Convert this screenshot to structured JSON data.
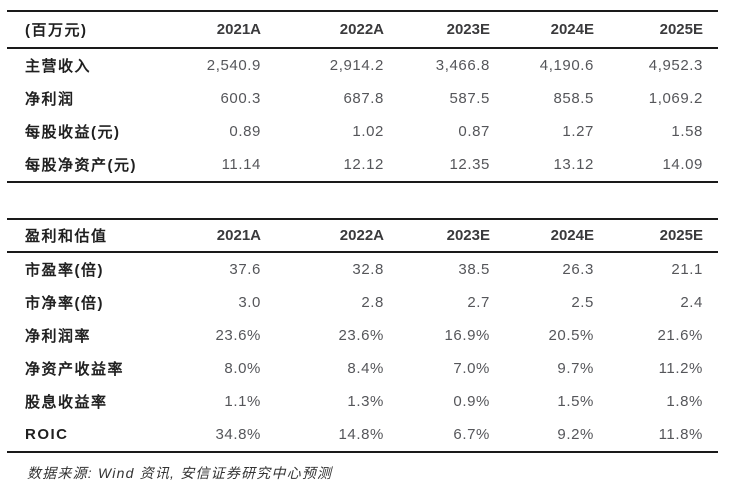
{
  "colors": {
    "background": "#ffffff",
    "rule_line": "#1a1a1a",
    "header_text": "#3a3a3c",
    "label_text": "#1f1f1f",
    "number_text": "#55565a",
    "footer_text": "#333333"
  },
  "summary_table": {
    "unit_label": "(百万元)",
    "columns": [
      "2021A",
      "2022A",
      "2023E",
      "2024E",
      "2025E"
    ],
    "rows": [
      {
        "label": "主营收入",
        "values": [
          "2,540.9",
          "2,914.2",
          "3,466.8",
          "4,190.6",
          "4,952.3"
        ]
      },
      {
        "label": "净利润",
        "values": [
          "600.3",
          "687.8",
          "587.5",
          "858.5",
          "1,069.2"
        ]
      },
      {
        "label": "每股收益(元)",
        "values": [
          "0.89",
          "1.02",
          "0.87",
          "1.27",
          "1.58"
        ]
      },
      {
        "label": "每股净资产(元)",
        "values": [
          "11.14",
          "12.12",
          "12.35",
          "13.12",
          "14.09"
        ]
      }
    ]
  },
  "valuation_table": {
    "title": "盈利和估值",
    "columns": [
      "2021A",
      "2022A",
      "2023E",
      "2024E",
      "2025E"
    ],
    "rows": [
      {
        "label": "市盈率(倍)",
        "values": [
          "37.6",
          "32.8",
          "38.5",
          "26.3",
          "21.1"
        ]
      },
      {
        "label": "市净率(倍)",
        "values": [
          "3.0",
          "2.8",
          "2.7",
          "2.5",
          "2.4"
        ]
      },
      {
        "label": "净利润率",
        "values": [
          "23.6%",
          "23.6%",
          "16.9%",
          "20.5%",
          "21.6%"
        ]
      },
      {
        "label": "净资产收益率",
        "values": [
          "8.0%",
          "8.4%",
          "7.0%",
          "9.7%",
          "11.2%"
        ]
      },
      {
        "label": "股息收益率",
        "values": [
          "1.1%",
          "1.3%",
          "0.9%",
          "1.5%",
          "1.8%"
        ]
      },
      {
        "label": "ROIC",
        "values": [
          "34.8%",
          "14.8%",
          "6.7%",
          "9.2%",
          "11.8%"
        ]
      }
    ]
  },
  "footer": {
    "source_note": "数据来源: Wind 资讯, 安信证券研究中心预测"
  }
}
